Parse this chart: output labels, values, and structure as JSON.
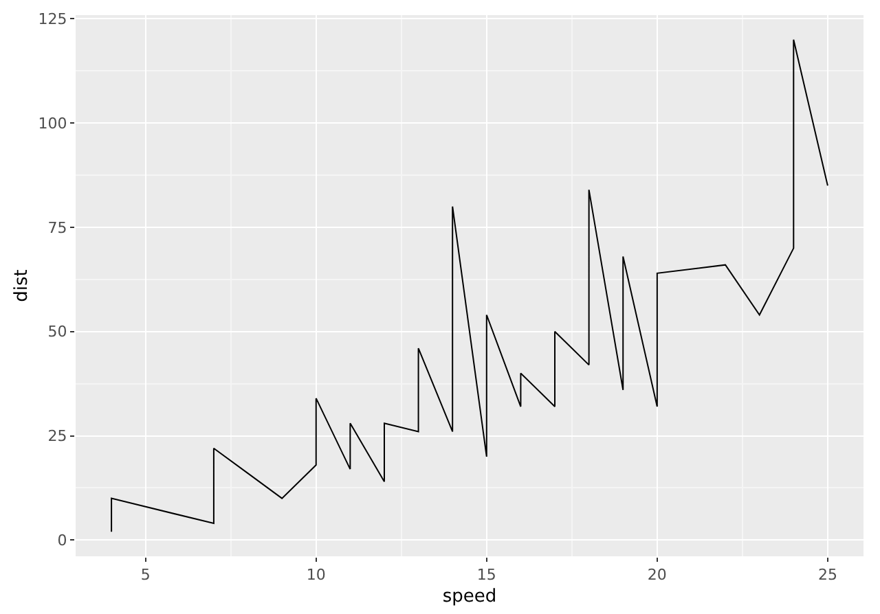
{
  "chart_data": {
    "type": "line",
    "xlabel": "speed",
    "ylabel": "dist",
    "x": [
      4,
      4,
      7,
      7,
      8,
      9,
      10,
      10,
      10,
      11,
      11,
      12,
      12,
      12,
      12,
      13,
      13,
      13,
      13,
      14,
      14,
      14,
      14,
      15,
      15,
      15,
      16,
      16,
      17,
      17,
      17,
      18,
      18,
      18,
      18,
      19,
      19,
      19,
      20,
      20,
      20,
      20,
      20,
      22,
      23,
      24,
      24,
      24,
      24,
      25
    ],
    "series": [
      {
        "color": "#000000",
        "values": [
          2,
          10,
          4,
          22,
          16,
          10,
          18,
          26,
          34,
          17,
          28,
          14,
          20,
          24,
          28,
          26,
          34,
          34,
          46,
          26,
          36,
          60,
          80,
          20,
          26,
          54,
          32,
          40,
          32,
          40,
          50,
          42,
          56,
          76,
          84,
          36,
          46,
          68,
          32,
          48,
          52,
          56,
          64,
          66,
          54,
          70,
          92,
          93,
          120,
          85
        ]
      }
    ],
    "xlim": [
      2.95,
      26.05
    ],
    "xticks": [
      5,
      10,
      15,
      20,
      25
    ],
    "ylim": [
      -3.9,
      125.9
    ],
    "yticks": [
      0,
      25,
      50,
      75,
      100,
      125
    ],
    "grid": true,
    "marker": "none",
    "line_style": "solid"
  }
}
